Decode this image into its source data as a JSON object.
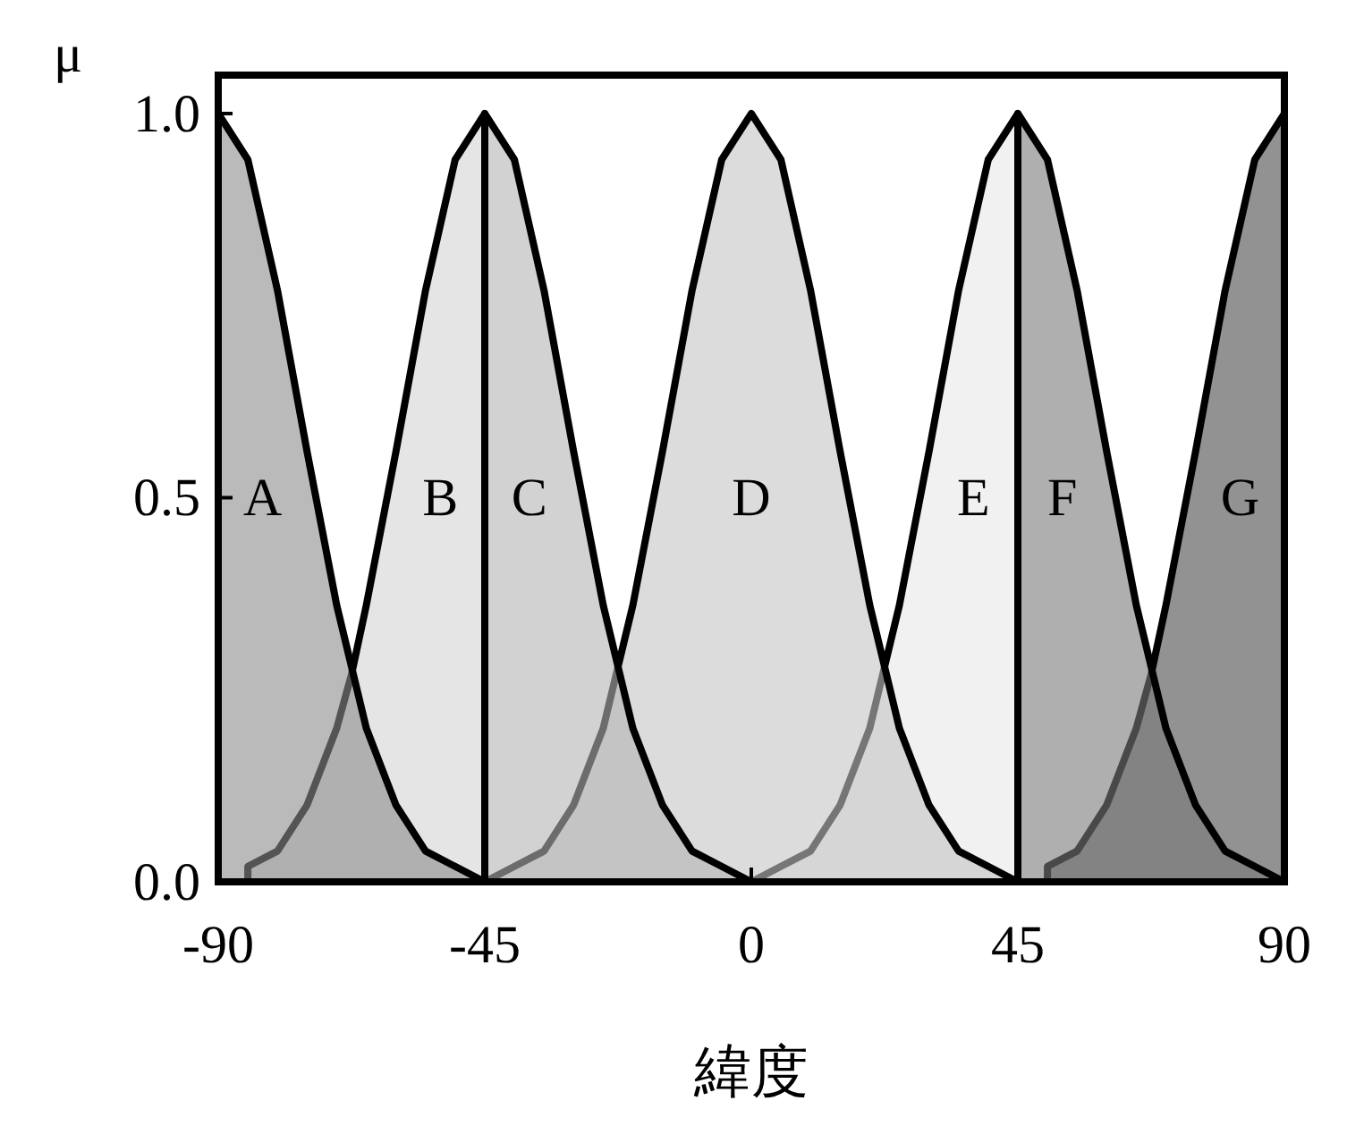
{
  "chart_data": {
    "type": "area",
    "xlabel": "緯度",
    "ylabel": "μ",
    "xlim": [
      -90,
      90
    ],
    "ylim": [
      0,
      1.05
    ],
    "xticks": [
      -90,
      -45,
      0,
      45,
      90
    ],
    "yticks": [
      {
        "value": 0,
        "label": "0.0"
      },
      {
        "value": 0.5,
        "label": "0.5"
      },
      {
        "value": 1,
        "label": "1.0"
      }
    ],
    "grid": false,
    "legend": false,
    "series": [
      {
        "name": "A",
        "color": "#8c8c8c",
        "x": [
          -90,
          -85,
          -80,
          -75,
          -70,
          -65,
          -60,
          -55,
          -50,
          -45
        ],
        "values": [
          1,
          0.94,
          0.77,
          0.56,
          0.36,
          0.2,
          0.1,
          0.04,
          0.02,
          0
        ]
      },
      {
        "name": "B",
        "color": "#d4d4d4",
        "x": [
          -85,
          -80,
          -75,
          -70,
          -67.5,
          -65,
          -60,
          -55,
          -50,
          -45
        ],
        "values": [
          0.02,
          0.04,
          0.1,
          0.2,
          0.27,
          0.36,
          0.56,
          0.77,
          0.94,
          1
        ]
      },
      {
        "name": "C",
        "color": "#b4b4b4",
        "x": [
          -45,
          -40,
          -35,
          -30,
          -25,
          -20,
          -15,
          -10,
          -5,
          0
        ],
        "values": [
          1,
          0.94,
          0.77,
          0.56,
          0.36,
          0.2,
          0.1,
          0.04,
          0.02,
          0
        ]
      },
      {
        "name": "D",
        "color": "#c4c4c4",
        "x": [
          -45,
          -40,
          -35,
          -30,
          -25,
          -20,
          -15,
          -10,
          -5,
          0,
          5,
          10,
          15,
          20,
          25,
          30,
          35,
          40,
          45
        ],
        "values": [
          0,
          0.02,
          0.04,
          0.1,
          0.2,
          0.36,
          0.56,
          0.77,
          0.94,
          1,
          0.94,
          0.77,
          0.56,
          0.36,
          0.2,
          0.1,
          0.04,
          0.02,
          0
        ]
      },
      {
        "name": "E",
        "color": "#e8e8e8",
        "x": [
          0,
          5,
          10,
          15,
          20,
          25,
          30,
          35,
          40,
          45
        ],
        "values": [
          0,
          0.02,
          0.04,
          0.1,
          0.2,
          0.36,
          0.56,
          0.77,
          0.94,
          1
        ]
      },
      {
        "name": "F",
        "color": "#7a7a7a",
        "x": [
          45,
          50,
          55,
          60,
          65,
          70,
          75,
          80,
          85,
          90
        ],
        "values": [
          1,
          0.94,
          0.77,
          0.56,
          0.36,
          0.2,
          0.1,
          0.04,
          0.02,
          0
        ]
      },
      {
        "name": "G",
        "color": "#4a4a4a",
        "x": [
          50,
          55,
          60,
          65,
          67.5,
          70,
          75,
          80,
          85,
          90
        ],
        "values": [
          0.02,
          0.04,
          0.1,
          0.2,
          0.27,
          0.36,
          0.56,
          0.77,
          0.94,
          1
        ]
      }
    ]
  }
}
